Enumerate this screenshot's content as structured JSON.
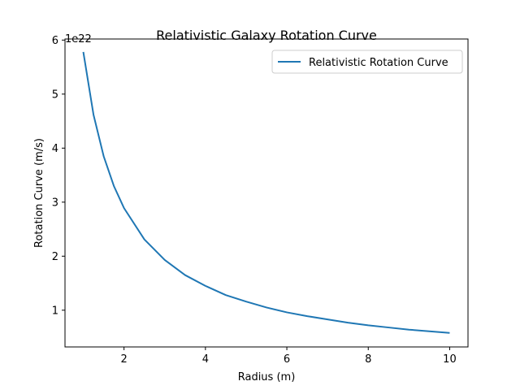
{
  "chart_data": {
    "type": "line",
    "title": "Relativistic Galaxy Rotation Curve",
    "xlabel": "Radius (m)",
    "ylabel": "Rotation Curve (m/s)",
    "y_offset_label": "1e22",
    "xlim": [
      0.55,
      10.45
    ],
    "ylim": [
      0.32,
      6.02
    ],
    "x_ticks": [
      2,
      4,
      6,
      8,
      10
    ],
    "x_tick_labels": [
      "2",
      "4",
      "6",
      "8",
      "10"
    ],
    "y_ticks": [
      1,
      2,
      3,
      4,
      5,
      6
    ],
    "y_tick_labels": [
      "1",
      "2",
      "3",
      "4",
      "5",
      "6"
    ],
    "grid": false,
    "legend_position": "upper right",
    "series": [
      {
        "name": "Relativistic Rotation Curve",
        "color": "#1f77b4",
        "x": [
          1,
          1.25,
          1.5,
          1.75,
          2,
          2.5,
          3,
          3.5,
          4,
          4.5,
          5,
          5.5,
          6,
          6.5,
          7,
          7.5,
          8,
          8.5,
          9,
          9.5,
          10
        ],
        "y": [
          5.78,
          4.62,
          3.85,
          3.3,
          2.89,
          2.31,
          1.93,
          1.65,
          1.45,
          1.28,
          1.16,
          1.05,
          0.96,
          0.89,
          0.83,
          0.77,
          0.72,
          0.68,
          0.64,
          0.61,
          0.58
        ]
      }
    ]
  }
}
